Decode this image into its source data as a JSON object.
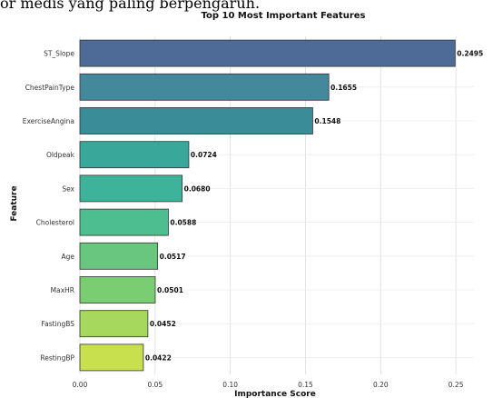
{
  "page_text": "or medis yang paling berpengaruh.",
  "chart_data": {
    "type": "bar",
    "orientation": "horizontal",
    "title": "Top 10 Most Important Features",
    "xlabel": "Importance Score",
    "ylabel": "Feature",
    "categories": [
      "ST_Slope",
      "ChestPainType",
      "ExerciseAngina",
      "Oldpeak",
      "Sex",
      "Cholesterol",
      "Age",
      "MaxHR",
      "FastingBS",
      "RestingBP"
    ],
    "values": [
      0.2495,
      0.1655,
      0.1548,
      0.0724,
      0.068,
      0.0588,
      0.0517,
      0.0501,
      0.0452,
      0.0422
    ],
    "data_labels": [
      "0.2495",
      "0.1655",
      "0.1548",
      "0.0724",
      "0.0680",
      "0.0588",
      "0.0517",
      "0.0501",
      "0.0452",
      "0.0422"
    ],
    "xticks": [
      "0.00",
      "0.05",
      "0.10",
      "0.15",
      "0.20",
      "0.25"
    ],
    "xlim": [
      0,
      0.262
    ],
    "grid": true,
    "colors": [
      "#4e6a97",
      "#43899b",
      "#3a8d98",
      "#39a89b",
      "#3db49a",
      "#4cbe8f",
      "#68c67f",
      "#7bcd71",
      "#a5d85c",
      "#c9e04e"
    ],
    "edge_color": "#333333"
  }
}
